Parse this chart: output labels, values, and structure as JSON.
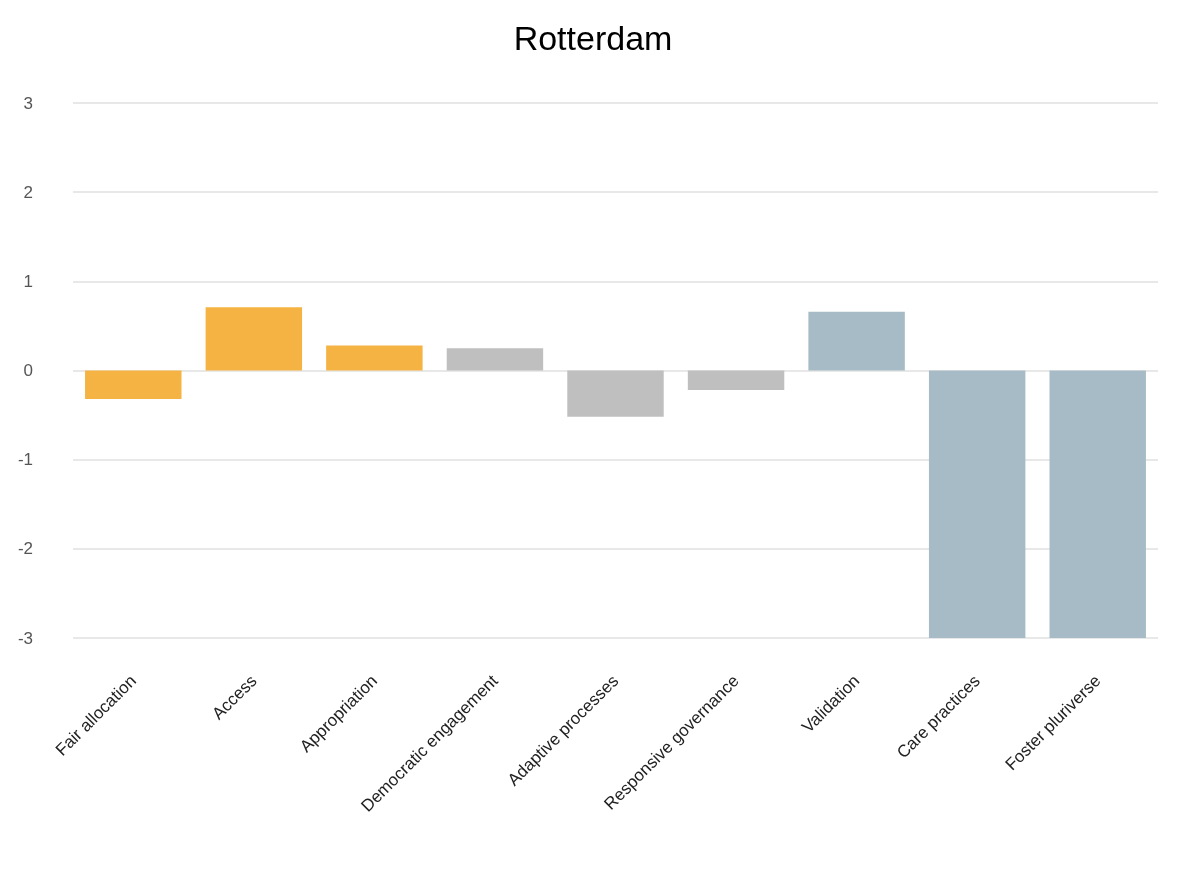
{
  "chart_data": {
    "type": "bar",
    "title": "Rotterdam",
    "categories": [
      "Fair allocation",
      "Access",
      "Appropriation",
      "Democratic engagement",
      "Adaptive processes",
      "Responsive governance",
      "Validation",
      "Care practices",
      "Foster pluriverse"
    ],
    "values": [
      -0.32,
      0.71,
      0.28,
      0.25,
      -0.52,
      -0.22,
      0.66,
      -3,
      -3
    ],
    "colors": [
      "#f4b342",
      "#f4b342",
      "#f4b342",
      "#bfbfbf",
      "#bfbfbf",
      "#bfbfbf",
      "#a7bbc6",
      "#a7bbc6",
      "#a7bbc6"
    ],
    "ylim": [
      -3,
      3
    ],
    "yticks": [
      -3,
      -2,
      -1,
      0,
      1,
      2,
      3
    ],
    "grid": "y"
  }
}
